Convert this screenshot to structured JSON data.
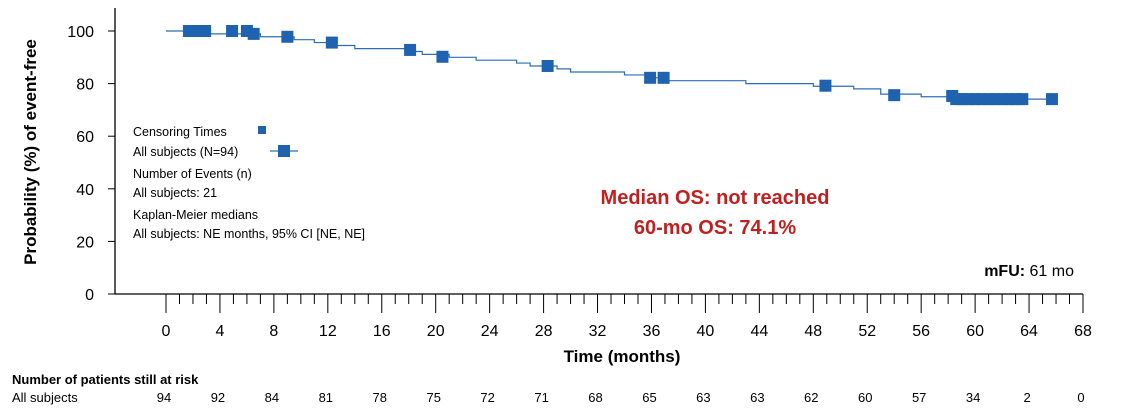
{
  "chart_data": {
    "type": "line",
    "ylabel": "Probability (%) of event-free",
    "xlabel": "Time (months)",
    "xlim": [
      0,
      68
    ],
    "ylim": [
      0,
      100
    ],
    "xticks": [
      0,
      4,
      8,
      12,
      16,
      20,
      24,
      28,
      32,
      36,
      40,
      44,
      48,
      52,
      56,
      60,
      64,
      68
    ],
    "yticks": [
      0,
      20,
      40,
      60,
      80,
      100
    ],
    "series": [
      {
        "name": "All subjects (N=94)",
        "steps": [
          [
            0,
            100
          ],
          [
            1.7,
            100
          ],
          [
            3,
            98.9
          ],
          [
            6.5,
            98.9
          ],
          [
            7,
            97.8
          ],
          [
            9,
            97.8
          ],
          [
            9.5,
            96.7
          ],
          [
            11,
            95.6
          ],
          [
            12.5,
            94.5
          ],
          [
            14,
            93.3
          ],
          [
            18,
            92.2
          ],
          [
            19,
            91.1
          ],
          [
            21,
            90
          ],
          [
            23,
            88.9
          ],
          [
            26,
            87.8
          ],
          [
            27,
            86.7
          ],
          [
            29,
            85.6
          ],
          [
            30,
            84.4
          ],
          [
            34,
            83.3
          ],
          [
            36,
            82.2
          ],
          [
            37,
            81.1
          ],
          [
            43,
            80
          ],
          [
            48,
            79
          ],
          [
            51,
            78
          ],
          [
            53,
            76
          ],
          [
            56,
            75
          ],
          [
            58,
            74.1
          ],
          [
            66,
            74.1
          ]
        ],
        "censor_times": [
          [
            1.7,
            100
          ],
          [
            2.1,
            100
          ],
          [
            2.5,
            100
          ],
          [
            2.9,
            100
          ],
          [
            4.9,
            100
          ],
          [
            6,
            100
          ],
          [
            6.5,
            98.9
          ],
          [
            9,
            97.8
          ],
          [
            12.3,
            95.6
          ],
          [
            18.1,
            92.8
          ],
          [
            20.5,
            90.2
          ],
          [
            28.3,
            86.7
          ],
          [
            35.9,
            82.2
          ],
          [
            36.9,
            82.2
          ],
          [
            48.9,
            79.2
          ],
          [
            54,
            75.6
          ],
          [
            58.3,
            75.3
          ],
          [
            58.6,
            74.1
          ],
          [
            59,
            74.1
          ],
          [
            59.5,
            74.1
          ],
          [
            60,
            74.1
          ],
          [
            60.5,
            74.1
          ],
          [
            61,
            74.1
          ],
          [
            61.5,
            74.1
          ],
          [
            62,
            74.1
          ],
          [
            62.5,
            74.1
          ],
          [
            63,
            74.1
          ],
          [
            63.5,
            74.1
          ],
          [
            65.7,
            74.1
          ]
        ]
      }
    ],
    "legend": {
      "censor_label": "Censoring Times",
      "subject_label": "All subjects (N=94)",
      "events_title": "Number of Events (n)",
      "events_value": "All subjects: 21",
      "km_title": "Kaplan-Meier medians",
      "km_value": "All subjects: NE months, 95% CI [NE, NE]"
    },
    "annotations": {
      "median_os": "Median OS: not reached",
      "os60": "60-mo OS: 74.1%",
      "mfu_label": "mFU:",
      "mfu_value": " 61 mo"
    },
    "risk_table": {
      "title": "Number of patients still at risk",
      "row_label": "All subjects",
      "values": [
        "94",
        "92",
        "84",
        "81",
        "78",
        "75",
        "72",
        "71",
        "68",
        "65",
        "63",
        "63",
        "62",
        "60",
        "57",
        "34",
        "2",
        "0"
      ]
    }
  },
  "colors": {
    "series": "#2e6db4",
    "censor": "#1f62b0",
    "annotation": "#c0201e"
  }
}
